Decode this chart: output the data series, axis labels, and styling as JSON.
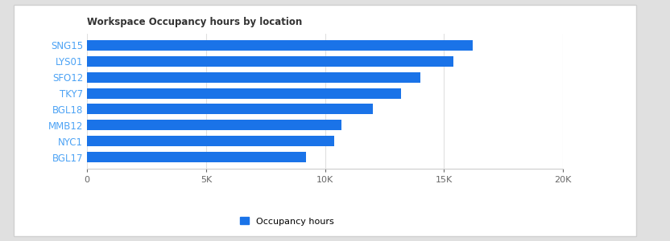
{
  "title": "Workspace Occupancy hours by location",
  "categories": [
    "BGL17",
    "NYC1",
    "MMB12",
    "BGL18",
    "TKY7",
    "SFO12",
    "LYS01",
    "SNG15"
  ],
  "values": [
    9200,
    10400,
    10700,
    12000,
    13200,
    14000,
    15400,
    16200
  ],
  "bar_color": "#1a73e8",
  "label_color": "#4da3f5",
  "legend_label": "Occupancy hours",
  "xlim": [
    0,
    20000
  ],
  "xticks": [
    0,
    5000,
    10000,
    15000,
    20000
  ],
  "xtick_labels": [
    "0",
    "5K",
    "10K",
    "15K",
    "20K"
  ],
  "background_color": "#ffffff",
  "outer_bg": "#e0e0e0",
  "card_bg": "#ffffff",
  "card_edge": "#d0d0d0",
  "title_fontsize": 8.5,
  "label_fontsize": 8.5,
  "tick_fontsize": 8.0,
  "legend_fontsize": 8.0
}
